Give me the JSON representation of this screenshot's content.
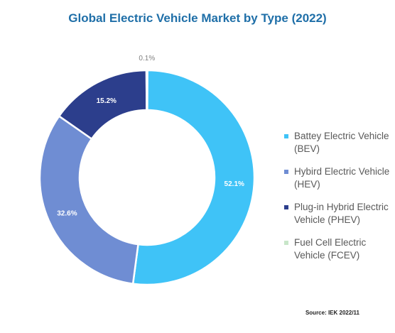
{
  "chart_data": {
    "type": "pie",
    "title": "Global Electric Vehicle Market by Type (2022)",
    "categories": [
      "Battey Electric Vehicle (BEV)",
      "Hybird Electric Vehicle (HEV)",
      "Plug-in Hybrid Electric Vehicle (PHEV)",
      "Fuel Cell Electric Vehicle (FCEV)"
    ],
    "values": [
      52.1,
      32.6,
      15.2,
      0.1
    ],
    "labels": [
      "52.1%",
      "32.6%",
      "15.2%",
      "0.1%"
    ],
    "colors": [
      "#3fc3f7",
      "#6f8dd3",
      "#2c3e8c",
      "#c8e6c9"
    ],
    "donut": true,
    "legend_position": "right"
  },
  "source": "Source: IEK 2022/11"
}
